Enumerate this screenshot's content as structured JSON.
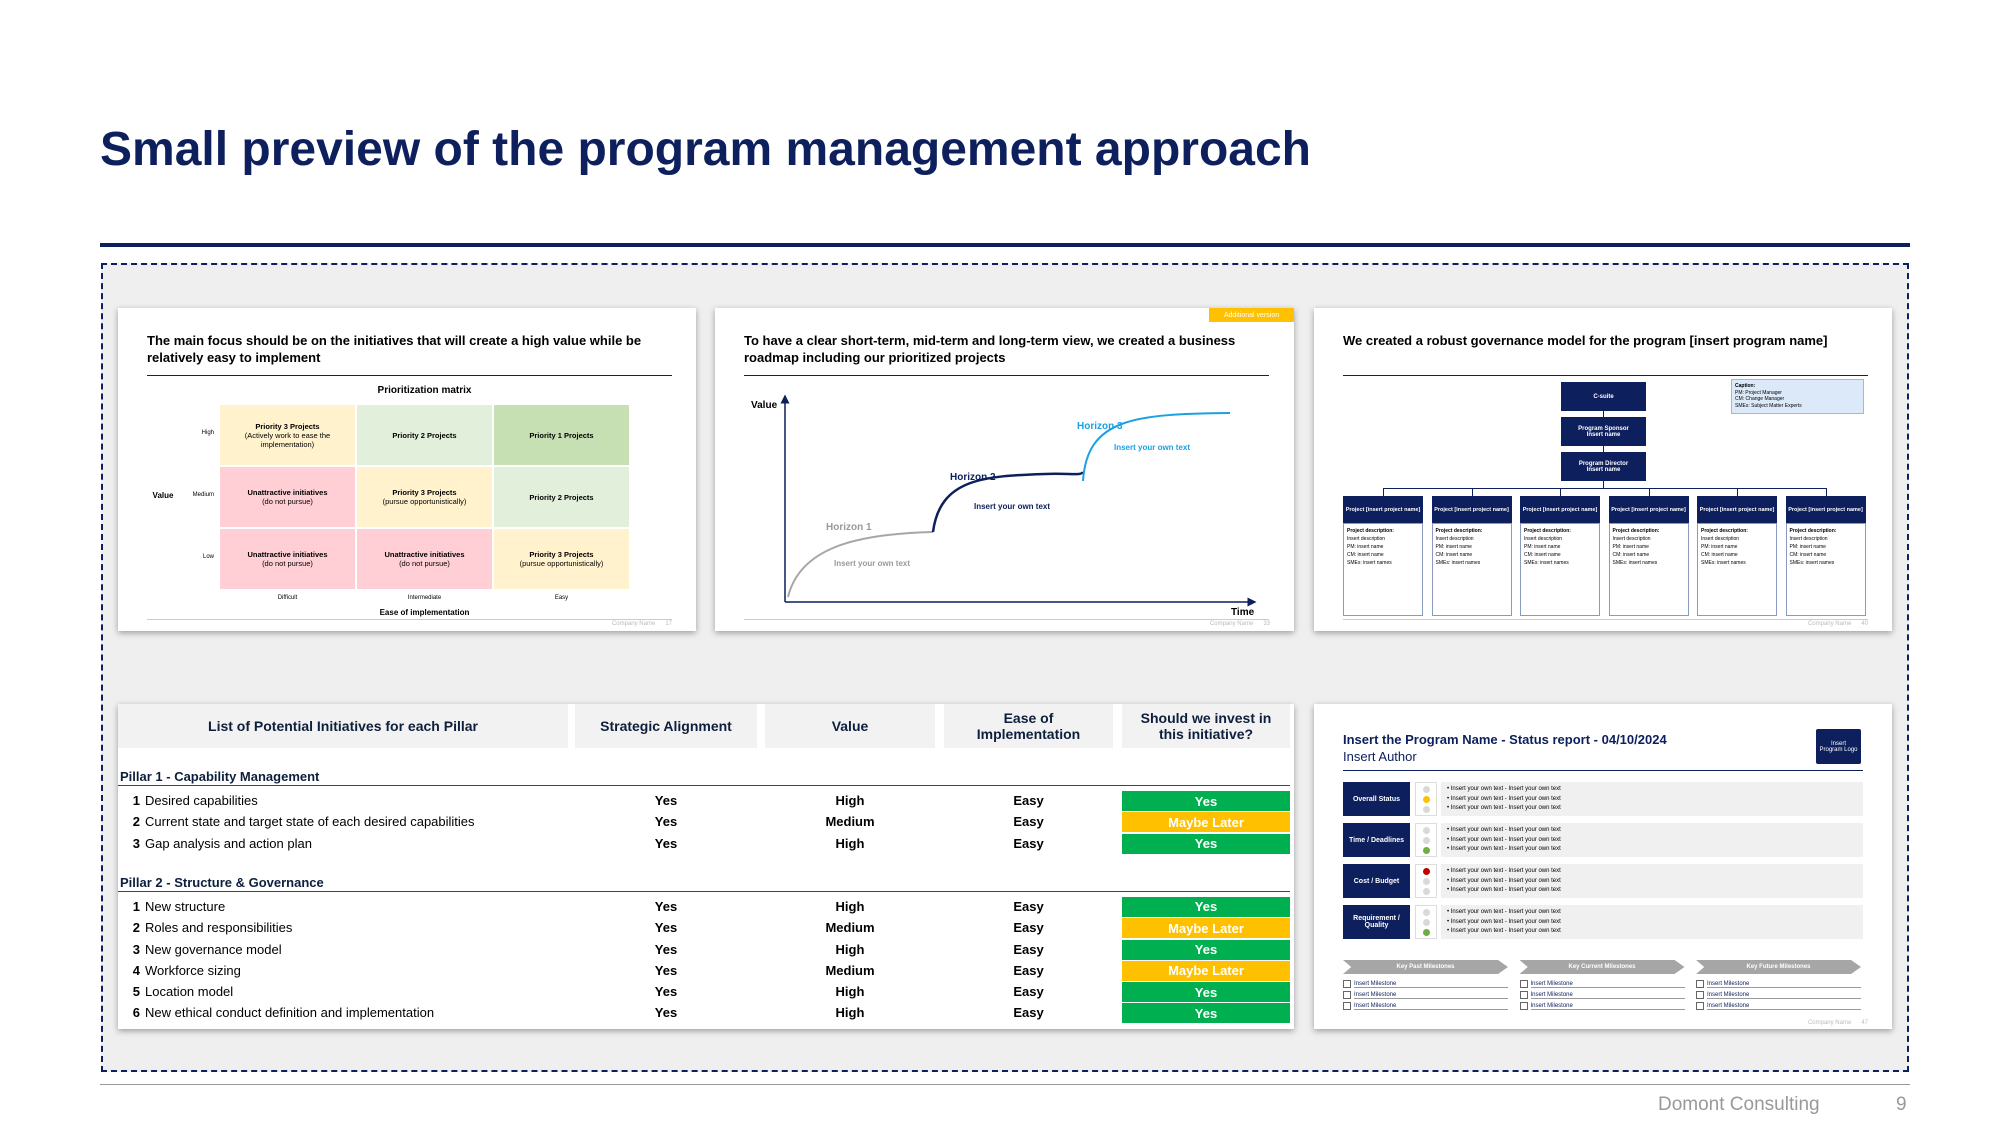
{
  "header": {
    "title": "Small preview of the program management approach"
  },
  "footer": {
    "company": "Domont Consulting",
    "page": 9
  },
  "slide1": {
    "heading": "The main focus should be on the initiatives that will create a high value while be relatively easy to implement",
    "matrix_title": "Prioritization matrix",
    "y_label": "Value",
    "y_levels": [
      "High",
      "Medium",
      "Low"
    ],
    "x_levels": [
      "Difficult",
      "Intermediate",
      "Easy"
    ],
    "x_label": "Ease of implementation",
    "cells": [
      [
        {
          "title": "Priority 3 Projects",
          "note": "(Actively work to ease the implementation)",
          "color": "#fff2cc"
        },
        {
          "title": "Priority 2 Projects",
          "color": "#e2efda"
        },
        {
          "title": "Priority 1 Projects",
          "color": "#c6e0b4"
        }
      ],
      [
        {
          "title": "Unattractive initiatives",
          "note": "(do not pursue)",
          "color": "#ffcfd5"
        },
        {
          "title": "Priority 3 Projects",
          "note": "(pursue opportunistically)",
          "color": "#fff2cc"
        },
        {
          "title": "Priority 2 Projects",
          "color": "#e2efda"
        }
      ],
      [
        {
          "title": "Unattractive initiatives",
          "note": "(do not pursue)",
          "color": "#ffcfd5"
        },
        {
          "title": "Unattractive initiatives",
          "note": "(do not pursue)",
          "color": "#ffcfd5"
        },
        {
          "title": "Priority 3 Projects",
          "note": "(pursue opportunistically)",
          "color": "#fff2cc"
        }
      ]
    ],
    "footer_company": "Company Name",
    "footer_page": 17
  },
  "slide2": {
    "tag": "Additional version",
    "heading": "To have a clear short-term, mid-term and long-term view, we created a business roadmap including our prioritized projects",
    "y_label": "Value",
    "x_label": "Time",
    "horizons": [
      {
        "name": "Horizon 1",
        "text": "Insert your own text"
      },
      {
        "name": "Horizon 2",
        "text": "Insert your own text"
      },
      {
        "name": "Horizon 3",
        "text": "Insert your own text"
      }
    ],
    "footer_company": "Company Name",
    "footer_page": 33
  },
  "slide3": {
    "heading": "We created a robust governance model for the program [insert program name]",
    "boxes": [
      {
        "title": "C-suite"
      },
      {
        "title": "Program Sponsor",
        "sub": "Insert name"
      },
      {
        "title": "Program Director",
        "sub": "Insert name"
      }
    ],
    "caption": {
      "title": "Caption:",
      "lines": [
        "PM: Project Manager",
        "CM: Change Manager",
        "SMEs: Subject Matter Experts"
      ]
    },
    "projects": [
      {
        "title": "Project [insert project name]",
        "lines": [
          "Project description:",
          "Insert description",
          "PM: insert name",
          "CM: insert name",
          "SMEs: insert names"
        ]
      },
      {
        "title": "Project [insert project name]",
        "lines": [
          "Project description:",
          "Insert description",
          "PM: insert name",
          "CM: insert name",
          "SMEs: insert names"
        ]
      },
      {
        "title": "Project [insert project name]",
        "lines": [
          "Project description:",
          "Insert description",
          "PM: insert name",
          "CM: insert name",
          "SMEs: insert names"
        ]
      },
      {
        "title": "Project [insert project name]",
        "lines": [
          "Project description:",
          "Insert description",
          "PM: insert name",
          "CM: insert name",
          "SMEs: insert names"
        ]
      },
      {
        "title": "Project [insert project name]",
        "lines": [
          "Project description:",
          "Insert description",
          "PM: insert name",
          "CM: insert name",
          "SMEs: insert names"
        ]
      },
      {
        "title": "Project [insert project name]",
        "lines": [
          "Project description:",
          "Insert description",
          "PM: insert name",
          "CM: insert name",
          "SMEs: insert names"
        ]
      }
    ],
    "footer_company": "Company Name",
    "footer_page": 40
  },
  "table": {
    "headers": [
      "List of Potential Initiatives for each Pillar",
      "Strategic Alignment",
      "Value",
      "Ease of Implementation",
      "Should we invest in this initiative?"
    ],
    "groups": [
      {
        "title": "Pillar 1 - Capability Management",
        "rows": [
          {
            "number": 1,
            "initiative": "Desired capabilities",
            "alignment": "Yes",
            "value": "High",
            "ease": "Easy",
            "invest": "Yes",
            "invest_color": "#00b050"
          },
          {
            "number": 2,
            "initiative": "Current state and target state of each desired capabilities",
            "alignment": "Yes",
            "value": "Medium",
            "ease": "Easy",
            "invest": "Maybe Later",
            "invest_color": "#ffc000"
          },
          {
            "number": 3,
            "initiative": "Gap analysis and action plan",
            "alignment": "Yes",
            "value": "High",
            "ease": "Easy",
            "invest": "Yes",
            "invest_color": "#00b050"
          }
        ]
      },
      {
        "title": "Pillar 2 - Structure & Governance",
        "rows": [
          {
            "number": 1,
            "initiative": "New structure",
            "alignment": "Yes",
            "value": "High",
            "ease": "Easy",
            "invest": "Yes",
            "invest_color": "#00b050"
          },
          {
            "number": 2,
            "initiative": "Roles and responsibilities",
            "alignment": "Yes",
            "value": "Medium",
            "ease": "Easy",
            "invest": "Maybe Later",
            "invest_color": "#ffc000"
          },
          {
            "number": 3,
            "initiative": "New governance model",
            "alignment": "Yes",
            "value": "High",
            "ease": "Easy",
            "invest": "Yes",
            "invest_color": "#00b050"
          },
          {
            "number": 4,
            "initiative": "Workforce sizing",
            "alignment": "Yes",
            "value": "Medium",
            "ease": "Easy",
            "invest": "Maybe Later",
            "invest_color": "#ffc000"
          },
          {
            "number": 5,
            "initiative": "Location model",
            "alignment": "Yes",
            "value": "High",
            "ease": "Easy",
            "invest": "Yes",
            "invest_color": "#00b050"
          },
          {
            "number": 6,
            "initiative": "New ethical conduct definition and implementation",
            "alignment": "Yes",
            "value": "High",
            "ease": "Easy",
            "invest": "Yes",
            "invest_color": "#00b050"
          }
        ]
      }
    ]
  },
  "status": {
    "title": "Insert the Program Name - Status report - 04/10/2024",
    "author": "Insert Author",
    "logo": "Insert Program Logo",
    "rows": [
      {
        "label": "Overall Status",
        "dots": [
          "#d9d9d9",
          "#ffc000",
          "#d9d9d9"
        ],
        "texts": [
          "Insert your own text - Insert your own text",
          "Insert your own text - Insert your own text",
          "Insert your own text - Insert your own text"
        ]
      },
      {
        "label": "Time / Deadlines",
        "dots": [
          "#d9d9d9",
          "#d9d9d9",
          "#70ad47"
        ],
        "texts": [
          "Insert your own text - Insert your own text",
          "Insert your own text - Insert your own text",
          "Insert your own text - Insert your own text"
        ]
      },
      {
        "label": "Cost / Budget",
        "dots": [
          "#c00000",
          "#d9d9d9",
          "#d9d9d9"
        ],
        "texts": [
          "Insert your own text - Insert your own text",
          "Insert your own text - Insert your own text",
          "Insert your own text - Insert your own text"
        ]
      },
      {
        "label": "Requirement / Quality",
        "dots": [
          "#d9d9d9",
          "#d9d9d9",
          "#70ad47"
        ],
        "texts": [
          "Insert your own text - Insert your own text",
          "Insert your own text - Insert your own text",
          "Insert your own text - Insert your own text"
        ]
      }
    ],
    "milestones": [
      {
        "title": "Key Past Milestones",
        "items": [
          "Insert Milestone",
          "Insert Milestone",
          "Insert Milestone"
        ]
      },
      {
        "title": "Key Current Milestones",
        "items": [
          "Insert Milestone",
          "Insert Milestone",
          "Insert Milestone"
        ]
      },
      {
        "title": "Key Future Milestones",
        "items": [
          "Insert Milestone",
          "Insert Milestone",
          "Insert Milestone"
        ]
      }
    ],
    "footer_company": "Company Name",
    "footer_page": 47
  }
}
